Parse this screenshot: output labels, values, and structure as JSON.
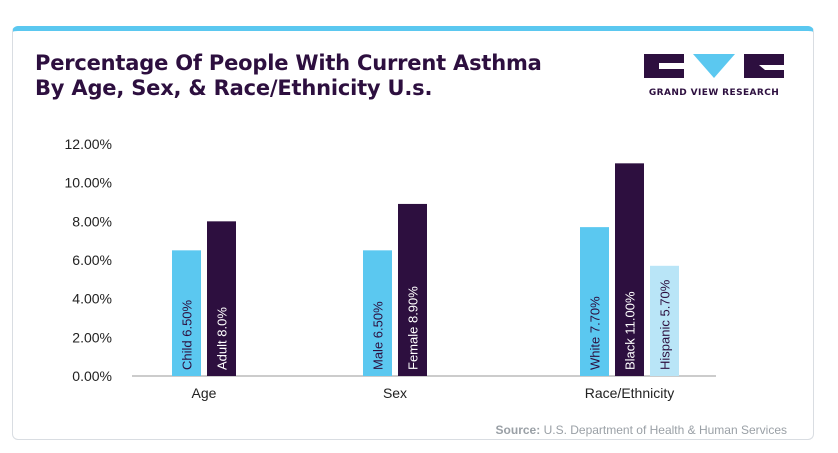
{
  "title": {
    "line1": "Percentage Of People With Current Asthma",
    "line2": "By Age, Sex, & Race/Ethnicity U.s."
  },
  "logo": {
    "text": "GRAND VIEW RESEARCH",
    "color": "#2d0f3f",
    "accent": "#5bc8f0"
  },
  "source": {
    "label": "Source:",
    "text": "U.S. Department of Health & Human Services"
  },
  "colors": {
    "light_blue": "#5bc8f0",
    "dark_purple": "#2d0f3f",
    "pale_blue": "#b9e5f7",
    "top_border": "#5bc8f0"
  },
  "chart_data": {
    "type": "bar",
    "ylim": [
      0,
      12
    ],
    "yticks": [
      "0.00%",
      "2.00%",
      "4.00%",
      "6.00%",
      "8.00%",
      "10.00%",
      "12.00%"
    ],
    "ytick_values": [
      0,
      2,
      4,
      6,
      8,
      10,
      12
    ],
    "grid": false,
    "groups": [
      {
        "category": "Age",
        "bars": [
          {
            "label": "Child 6.50%",
            "value": 6.5,
            "color": "#5bc8f0"
          },
          {
            "label": "Adult 8.0%",
            "value": 8.0,
            "color": "#2d0f3f"
          }
        ]
      },
      {
        "category": "Sex",
        "bars": [
          {
            "label": "Male 6.50%",
            "value": 6.5,
            "color": "#5bc8f0"
          },
          {
            "label": "Female 8.90%",
            "value": 8.9,
            "color": "#2d0f3f"
          }
        ]
      },
      {
        "category": "Race/Ethnicity",
        "bars": [
          {
            "label": "White 7.70%",
            "value": 7.7,
            "color": "#5bc8f0"
          },
          {
            "label": "Black 11.00%",
            "value": 11.0,
            "color": "#2d0f3f"
          },
          {
            "label": "Hispanic 5.70%",
            "value": 5.7,
            "color": "#b9e5f7"
          }
        ]
      }
    ]
  }
}
